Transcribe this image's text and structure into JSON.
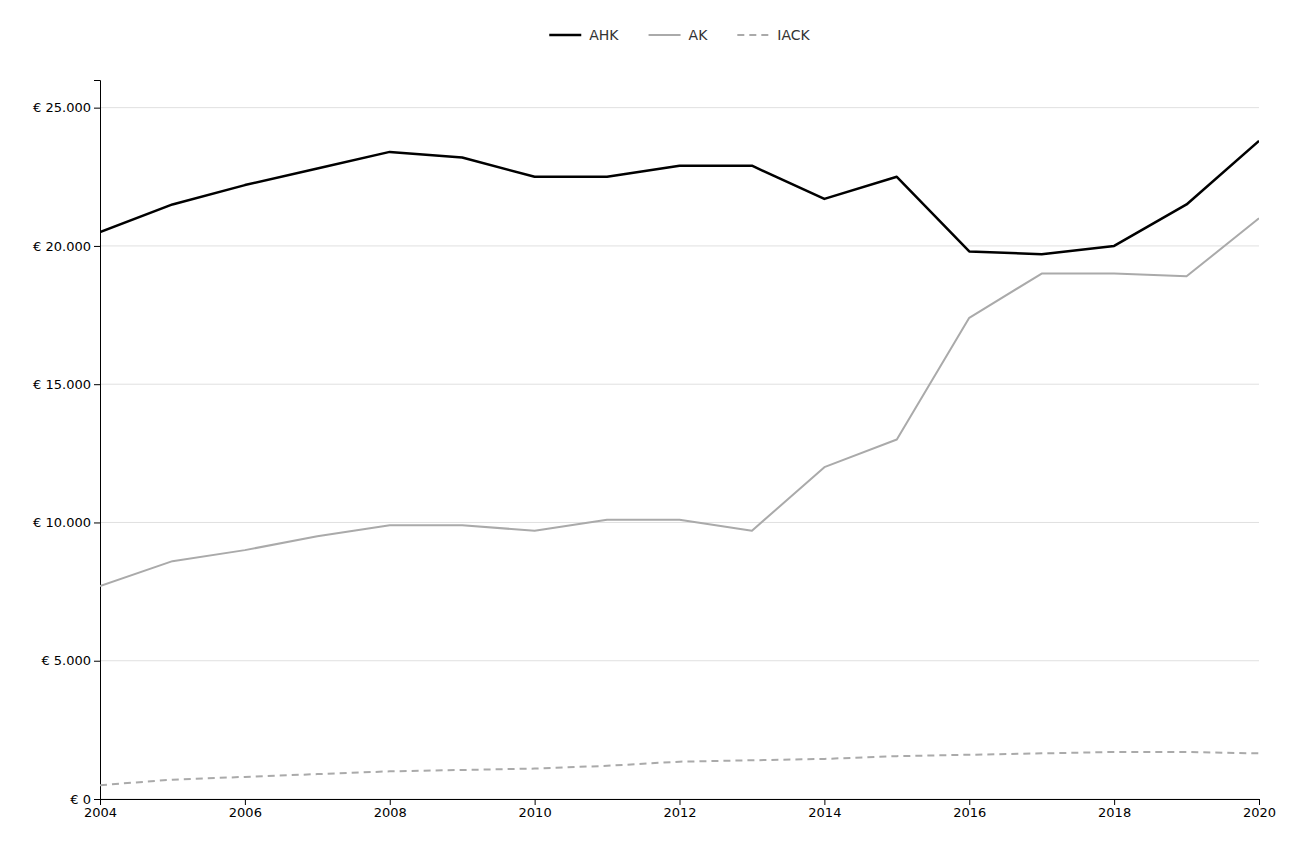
{
  "chart_data": {
    "type": "line",
    "x": [
      2004,
      2005,
      2006,
      2007,
      2008,
      2009,
      2010,
      2011,
      2012,
      2013,
      2014,
      2015,
      2016,
      2017,
      2018,
      2019,
      2020
    ],
    "series": [
      {
        "name": "AHK",
        "color": "#000000",
        "line_style": "solid",
        "values": [
          20500,
          21500,
          22200,
          22800,
          23400,
          23200,
          22500,
          22500,
          22900,
          22900,
          21700,
          22500,
          19800,
          19700,
          20000,
          21500,
          23800
        ]
      },
      {
        "name": "AK",
        "color": "#aaaaaa",
        "line_style": "solid",
        "values": [
          7700,
          8600,
          9000,
          9500,
          9900,
          9900,
          9700,
          10100,
          10100,
          9700,
          12000,
          13000,
          17400,
          19000,
          19000,
          18900,
          21000
        ]
      },
      {
        "name": "IACK",
        "color": "#aaaaaa",
        "line_style": "dashed",
        "values": [
          500,
          700,
          800,
          900,
          1000,
          1050,
          1100,
          1200,
          1350,
          1400,
          1450,
          1550,
          1600,
          1650,
          1700,
          1700,
          1650
        ]
      }
    ],
    "xlim": [
      2004,
      2020
    ],
    "xticks": [
      2004,
      2006,
      2008,
      2010,
      2012,
      2014,
      2016,
      2018,
      2020
    ],
    "ylim": [
      0,
      26000
    ],
    "yticks": [
      {
        "value": 0,
        "label": "€ 0"
      },
      {
        "value": 5000,
        "label": "€ 5.000"
      },
      {
        "value": 10000,
        "label": "€ 10.000"
      },
      {
        "value": 15000,
        "label": "€ 15.000"
      },
      {
        "value": 20000,
        "label": "€ 20.000"
      },
      {
        "value": 25000,
        "label": "€ 25.000"
      }
    ],
    "grid": "y",
    "legend": "top"
  }
}
